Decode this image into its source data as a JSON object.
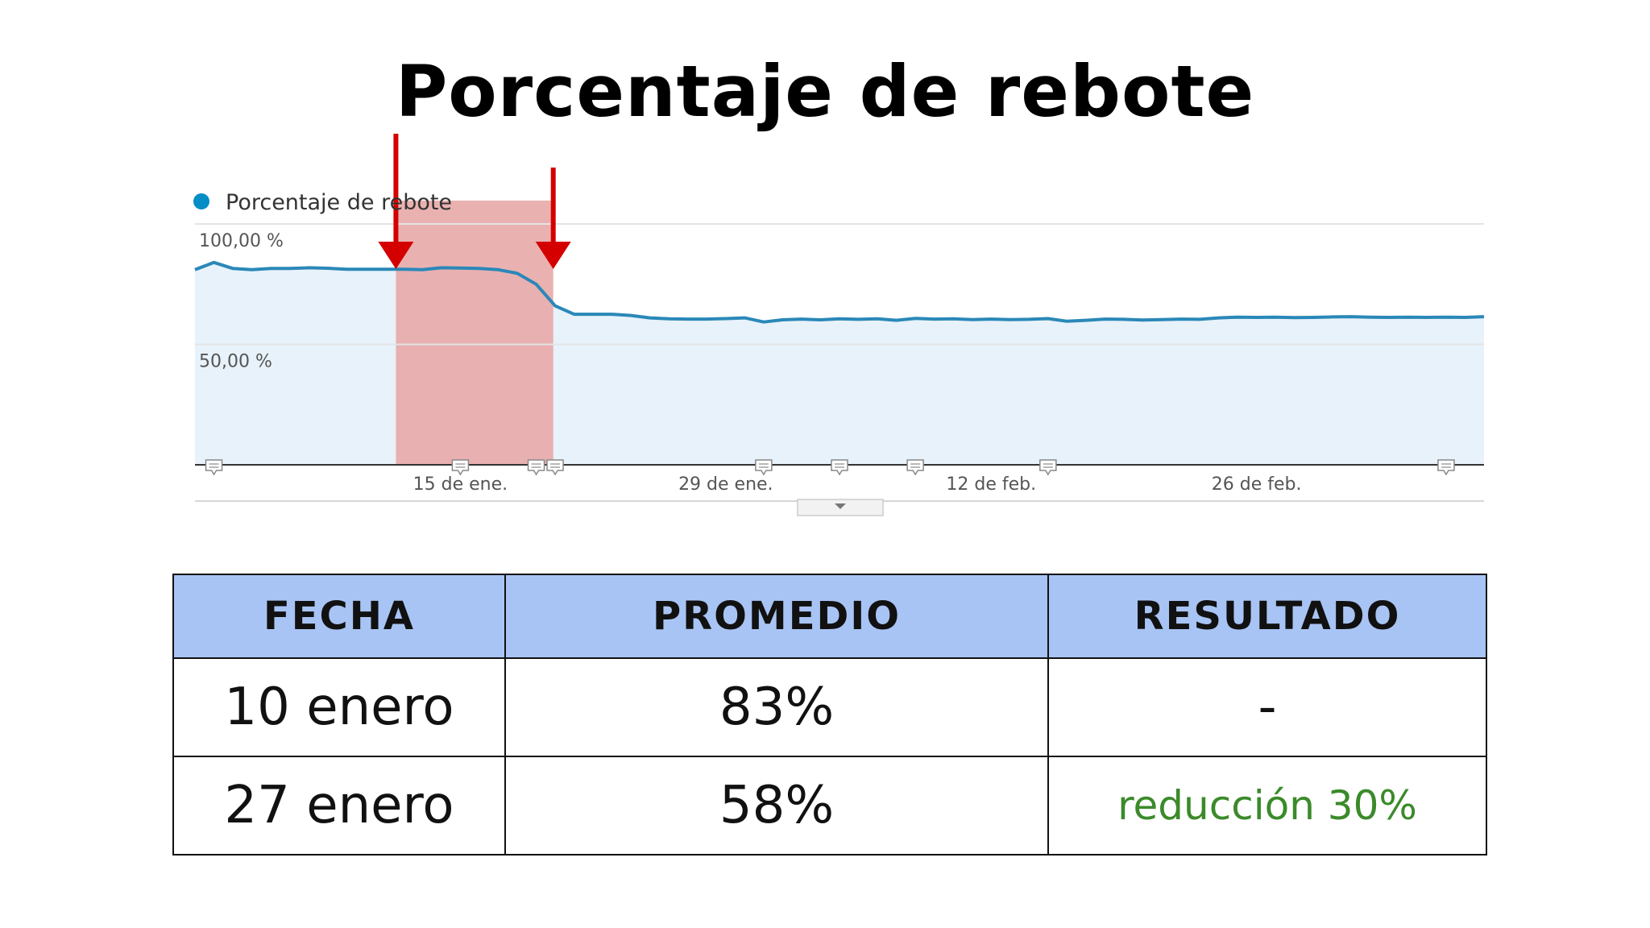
{
  "page": {
    "title": "Porcentaje de rebote"
  },
  "chart_data": {
    "type": "line",
    "legend": {
      "entries": [
        "Porcentaje de rebote"
      ],
      "placement": "top-left",
      "color": "#058dc7"
    },
    "ytick_labels": [
      "100,00 %",
      "50,00 %"
    ],
    "yticks": [
      100,
      50
    ],
    "ylim": [
      0,
      100
    ],
    "xtick_labels": [
      "15 de ene.",
      "29 de ene.",
      "12 de feb.",
      "26 de feb."
    ],
    "xtick_days": [
      14,
      28,
      42,
      56
    ],
    "xlim": [
      0,
      68
    ],
    "grid": true,
    "fill_color": "#e8f2fa",
    "line_color": "#2a88b8",
    "highlight": {
      "x_start": 10.6,
      "x_end": 18.9,
      "color": "#e8a9a9"
    },
    "arrows": [
      {
        "x": 10.6,
        "color": "#d40000"
      },
      {
        "x": 18.9,
        "color": "#d40000"
      }
    ],
    "annotation_markers_x": [
      1,
      14,
      18,
      19,
      30,
      34,
      38,
      45,
      66
    ],
    "series": [
      {
        "name": "Porcentaje de rebote",
        "x": [
          0,
          1,
          2,
          3,
          4,
          5,
          6,
          7,
          8,
          9,
          10,
          11,
          12,
          13,
          14,
          15,
          16,
          17,
          18,
          19,
          20,
          21,
          22,
          23,
          24,
          25,
          26,
          27,
          28,
          29,
          30,
          31,
          32,
          33,
          34,
          35,
          36,
          37,
          38,
          39,
          40,
          41,
          42,
          43,
          44,
          45,
          46,
          47,
          48,
          49,
          50,
          51,
          52,
          53,
          54,
          55,
          56,
          57,
          58,
          59,
          60,
          61,
          62,
          63,
          64,
          65,
          66,
          67,
          68
        ],
        "values": [
          81,
          84,
          81.5,
          81,
          81.5,
          81.5,
          81.8,
          81.6,
          81.2,
          81.2,
          81.2,
          81.2,
          81,
          81.8,
          81.7,
          81.5,
          81,
          79.5,
          75,
          66,
          62.5,
          62.5,
          62.5,
          62,
          61,
          60.6,
          60.5,
          60.5,
          60.7,
          61,
          59.3,
          60.2,
          60.5,
          60.2,
          60.6,
          60.4,
          60.6,
          60,
          60.8,
          60.5,
          60.6,
          60.3,
          60.5,
          60.3,
          60.4,
          60.7,
          59.6,
          60,
          60.5,
          60.4,
          60.1,
          60.3,
          60.5,
          60.4,
          61,
          61.3,
          61.2,
          61.3,
          61.1,
          61.2,
          61.4,
          61.5,
          61.3,
          61.2,
          61.3,
          61.2,
          61.3,
          61.2,
          61.5
        ]
      }
    ]
  },
  "table": {
    "headers": [
      "FECHA",
      "PROMEDIO",
      "RESULTADO"
    ],
    "rows": [
      {
        "fecha": "10 enero",
        "promedio": "83%",
        "resultado": "-"
      },
      {
        "fecha": "27 enero",
        "promedio": "58%",
        "resultado": "reducción 30%"
      }
    ],
    "positive_color": "#3b8a2a",
    "header_bg": "#a8c4f4"
  }
}
